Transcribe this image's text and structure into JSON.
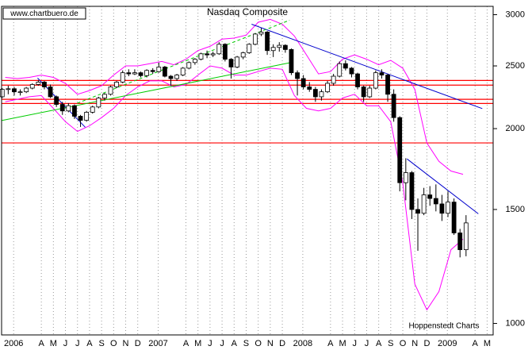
{
  "chart_data": {
    "type": "candlestick",
    "title": "Nasdaq Composite",
    "source": "www.chartbuero.de",
    "credit": "Hoppenstedt Charts",
    "log_scale": true,
    "grid": true,
    "up_color": "#ffffff",
    "down_color": "#000000",
    "xlim": [
      0.2,
      41
    ],
    "xticks": [
      {
        "value": 1.2,
        "label": "2006"
      },
      {
        "value": 3.5,
        "label": "A"
      },
      {
        "value": 4.5,
        "label": "M"
      },
      {
        "value": 5.5,
        "label": "J"
      },
      {
        "value": 6.5,
        "label": "J"
      },
      {
        "value": 7.5,
        "label": "A"
      },
      {
        "value": 8.5,
        "label": "S"
      },
      {
        "value": 9.5,
        "label": "O"
      },
      {
        "value": 10.5,
        "label": "N"
      },
      {
        "value": 11.5,
        "label": "D"
      },
      {
        "value": 13.2,
        "label": "2007"
      },
      {
        "value": 15.5,
        "label": "A"
      },
      {
        "value": 16.5,
        "label": "M"
      },
      {
        "value": 17.5,
        "label": "J"
      },
      {
        "value": 18.5,
        "label": "J"
      },
      {
        "value": 19.5,
        "label": "A"
      },
      {
        "value": 20.5,
        "label": "S"
      },
      {
        "value": 21.5,
        "label": "O"
      },
      {
        "value": 22.5,
        "label": "N"
      },
      {
        "value": 23.5,
        "label": "D"
      },
      {
        "value": 25.2,
        "label": "2008"
      },
      {
        "value": 27.5,
        "label": "A"
      },
      {
        "value": 28.5,
        "label": "M"
      },
      {
        "value": 29.5,
        "label": "J"
      },
      {
        "value": 30.5,
        "label": "J"
      },
      {
        "value": 31.5,
        "label": "A"
      },
      {
        "value": 32.5,
        "label": "S"
      },
      {
        "value": 33.5,
        "label": "O"
      },
      {
        "value": 34.5,
        "label": "N"
      },
      {
        "value": 35.5,
        "label": "D"
      },
      {
        "value": 37.2,
        "label": "2009"
      },
      {
        "value": 39.5,
        "label": "A"
      },
      {
        "value": 40.5,
        "label": "M"
      }
    ],
    "ylim": [
      960,
      3090
    ],
    "yticks": [
      3000,
      2500,
      2000,
      1500,
      1000
    ],
    "x": [
      0.25,
      0.75,
      1.25,
      1.75,
      2.25,
      2.75,
      3.25,
      3.75,
      4.25,
      4.75,
      5.25,
      5.75,
      6.25,
      6.75,
      7.25,
      7.75,
      8.25,
      8.75,
      9.25,
      9.75,
      10.25,
      10.75,
      11.25,
      11.75,
      12.25,
      12.75,
      13.25,
      13.75,
      14.25,
      14.75,
      15.25,
      15.75,
      16.25,
      16.75,
      17.25,
      17.75,
      18.25,
      18.75,
      19.25,
      19.75,
      20.25,
      20.75,
      21.25,
      21.75,
      22.25,
      22.75,
      23.25,
      23.75,
      24.25,
      24.75,
      25.25,
      25.75,
      26.25,
      26.75,
      27.25,
      27.75,
      28.25,
      28.75,
      29.25,
      29.75,
      30.25,
      30.75,
      31.25,
      31.75,
      32.25,
      32.75,
      33.25,
      33.75,
      34.25,
      34.75,
      35.25,
      35.75,
      36.25,
      36.75,
      37.25,
      37.75,
      38.25,
      38.75
    ],
    "open": [
      2240,
      2300,
      2305,
      2280,
      2280,
      2310,
      2340,
      2360,
      2320,
      2240,
      2180,
      2130,
      2170,
      2090,
      2060,
      2120,
      2160,
      2230,
      2260,
      2320,
      2360,
      2440,
      2430,
      2440,
      2415,
      2460,
      2450,
      2490,
      2410,
      2390,
      2420,
      2480,
      2530,
      2560,
      2610,
      2600,
      2610,
      2700,
      2560,
      2490,
      2580,
      2620,
      2700,
      2800,
      2820,
      2640,
      2670,
      2690,
      2650,
      2440,
      2390,
      2320,
      2300,
      2240,
      2280,
      2350,
      2410,
      2520,
      2480,
      2430,
      2320,
      2240,
      2310,
      2440,
      2420,
      2260,
      2080,
      1650,
      1710,
      1500,
      1480,
      1580,
      1560,
      1530,
      1480,
      1540,
      1380,
      1300
    ],
    "high": [
      2310,
      2330,
      2320,
      2300,
      2320,
      2350,
      2375,
      2370,
      2340,
      2250,
      2200,
      2190,
      2180,
      2100,
      2130,
      2170,
      2240,
      2270,
      2330,
      2370,
      2460,
      2470,
      2470,
      2450,
      2470,
      2480,
      2530,
      2500,
      2420,
      2430,
      2490,
      2540,
      2570,
      2620,
      2640,
      2630,
      2720,
      2710,
      2570,
      2590,
      2630,
      2710,
      2810,
      2860,
      2830,
      2700,
      2720,
      2700,
      2660,
      2460,
      2420,
      2360,
      2320,
      2300,
      2370,
      2430,
      2540,
      2550,
      2490,
      2440,
      2330,
      2330,
      2460,
      2470,
      2430,
      2300,
      2090,
      1800,
      1720,
      1560,
      1620,
      1630,
      1640,
      1580,
      1600,
      1560,
      1400,
      1470
    ],
    "low": [
      2230,
      2260,
      2250,
      2250,
      2270,
      2300,
      2330,
      2300,
      2230,
      2160,
      2100,
      2120,
      2070,
      2012,
      2050,
      2110,
      2150,
      2210,
      2250,
      2310,
      2350,
      2410,
      2420,
      2400,
      2400,
      2430,
      2440,
      2400,
      2330,
      2370,
      2410,
      2470,
      2510,
      2550,
      2570,
      2580,
      2600,
      2540,
      2390,
      2480,
      2560,
      2610,
      2690,
      2780,
      2600,
      2580,
      2630,
      2620,
      2420,
      2250,
      2300,
      2280,
      2200,
      2210,
      2270,
      2330,
      2400,
      2460,
      2400,
      2300,
      2200,
      2230,
      2300,
      2390,
      2200,
      2050,
      1600,
      1550,
      1450,
      1295,
      1470,
      1520,
      1490,
      1440,
      1460,
      1370,
      1265,
      1270
    ],
    "close": [
      2300,
      2305,
      2280,
      2280,
      2310,
      2340,
      2360,
      2320,
      2240,
      2180,
      2130,
      2170,
      2090,
      2060,
      2120,
      2160,
      2230,
      2260,
      2320,
      2360,
      2440,
      2430,
      2440,
      2415,
      2460,
      2450,
      2490,
      2410,
      2390,
      2420,
      2480,
      2530,
      2560,
      2610,
      2600,
      2610,
      2700,
      2560,
      2490,
      2580,
      2620,
      2700,
      2800,
      2820,
      2640,
      2670,
      2690,
      2650,
      2440,
      2390,
      2320,
      2300,
      2240,
      2280,
      2350,
      2410,
      2520,
      2480,
      2430,
      2320,
      2240,
      2310,
      2440,
      2420,
      2260,
      2080,
      1650,
      1710,
      1500,
      1480,
      1580,
      1560,
      1530,
      1480,
      1540,
      1380,
      1300,
      1430
    ],
    "bands": {
      "color": "#ff00ff",
      "x": [
        0.5,
        1.5,
        2.5,
        3.5,
        4.5,
        5.5,
        6.5,
        7.5,
        8.5,
        9.5,
        10.5,
        11.5,
        12.5,
        13.5,
        14.5,
        15.5,
        16.5,
        17.5,
        18.5,
        19.5,
        20.5,
        21.5,
        22.5,
        23.5,
        24.5,
        25.5,
        26.5,
        27.5,
        28.5,
        29.5,
        30.5,
        31.5,
        32.5,
        33.5,
        34.5,
        35.5,
        36.5,
        37.5,
        38.5
      ],
      "upper": [
        2400,
        2390,
        2400,
        2420,
        2400,
        2350,
        2260,
        2290,
        2330,
        2420,
        2500,
        2500,
        2520,
        2540,
        2510,
        2560,
        2640,
        2680,
        2750,
        2760,
        2790,
        2920,
        2950,
        2900,
        2780,
        2600,
        2430,
        2450,
        2560,
        2600,
        2560,
        2510,
        2550,
        2480,
        2300,
        1900,
        1780,
        1720,
        1700
      ],
      "lower": [
        2200,
        2220,
        2240,
        2250,
        2150,
        2050,
        1980,
        2020,
        2080,
        2150,
        2250,
        2320,
        2370,
        2370,
        2320,
        2340,
        2420,
        2500,
        2480,
        2420,
        2420,
        2450,
        2480,
        2470,
        2250,
        2150,
        2130,
        2150,
        2230,
        2260,
        2170,
        2170,
        2050,
        1650,
        1150,
        1050,
        1120,
        1300,
        1350
      ]
    },
    "trendlines": [
      {
        "color": "#0000cc",
        "dashed": false,
        "x": [
          3.19,
          7.14
        ],
        "values": [
          2394,
          2010
        ]
      },
      {
        "color": "#0000cc",
        "dashed": false,
        "x": [
          20.95,
          40.1
        ],
        "values": [
          2900,
          2148
        ]
      },
      {
        "color": "#0000cc",
        "dashed": false,
        "x": [
          33.85,
          39.77
        ],
        "values": [
          1796,
          1477
        ]
      },
      {
        "color": "#00cc00",
        "dashed": false,
        "x": [
          0.2,
          24.1
        ],
        "values": [
          2058,
          2528
        ]
      },
      {
        "color": "#00cc00",
        "dashed": true,
        "x": [
          6.48,
          24.1
        ],
        "values": [
          2189,
          2941
        ]
      }
    ],
    "hlines": {
      "color": "#ff0000",
      "values": [
        2374,
        2335,
        2220,
        2187,
        1901
      ]
    }
  }
}
